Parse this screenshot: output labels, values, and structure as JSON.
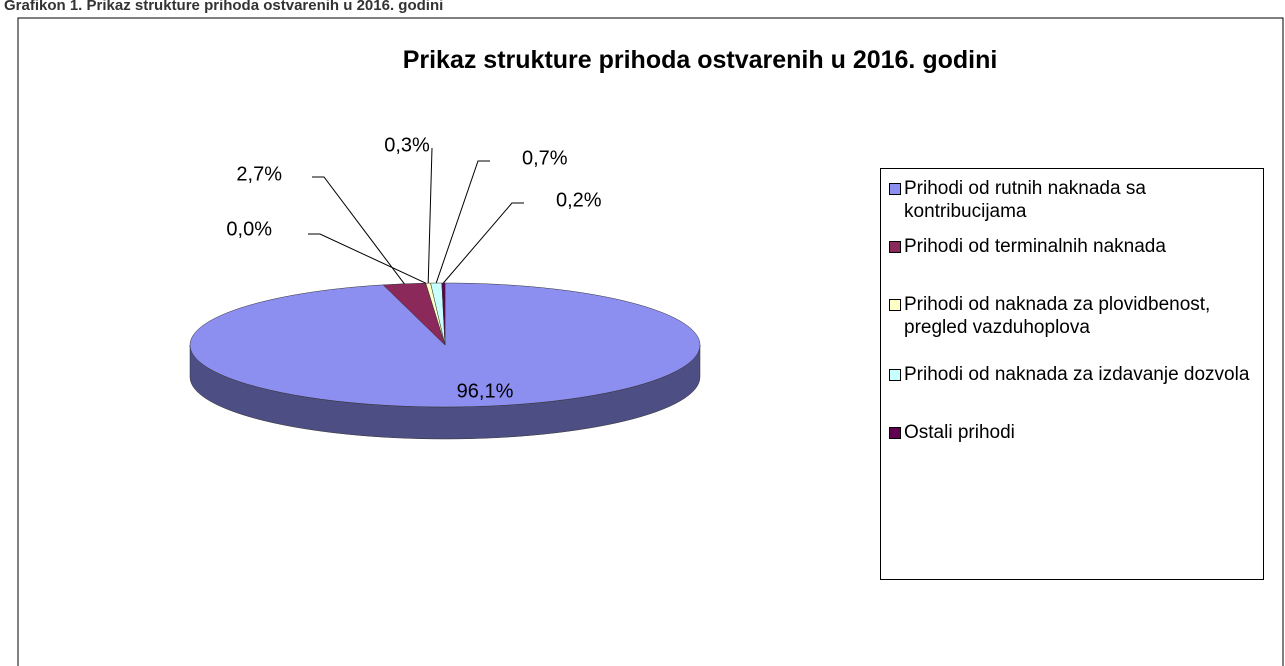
{
  "caption": "Grafikon 1. Prikaz strukture prihoda ostvarenih u 2016. godini",
  "chart_data": {
    "type": "pie3d",
    "title": "Prikaz strukture  prihoda ostvarenih u 2016. godini",
    "categories": [
      "Prihodi od rutnih naknada  sa kontribucijama",
      "Prihodi od terminalnih naknada",
      null,
      "Prihodi od naknada za plovidbenost, pregled vazduhoplova",
      "Prihodi od naknada za izdavanje dozvola",
      "Ostali prihodi"
    ],
    "values": [
      96.1,
      2.7,
      0.0,
      0.3,
      0.7,
      0.2
    ],
    "value_labels": [
      "96,1%",
      "2,7%",
      "0,0%",
      "0,3%",
      "0,7%",
      "0,2%"
    ],
    "colors": [
      "#8c8ef0",
      "#8b2a5a",
      "#a0a0a0",
      "#ffffc8",
      "#c8ffff",
      "#600050"
    ],
    "legend": "right"
  }
}
